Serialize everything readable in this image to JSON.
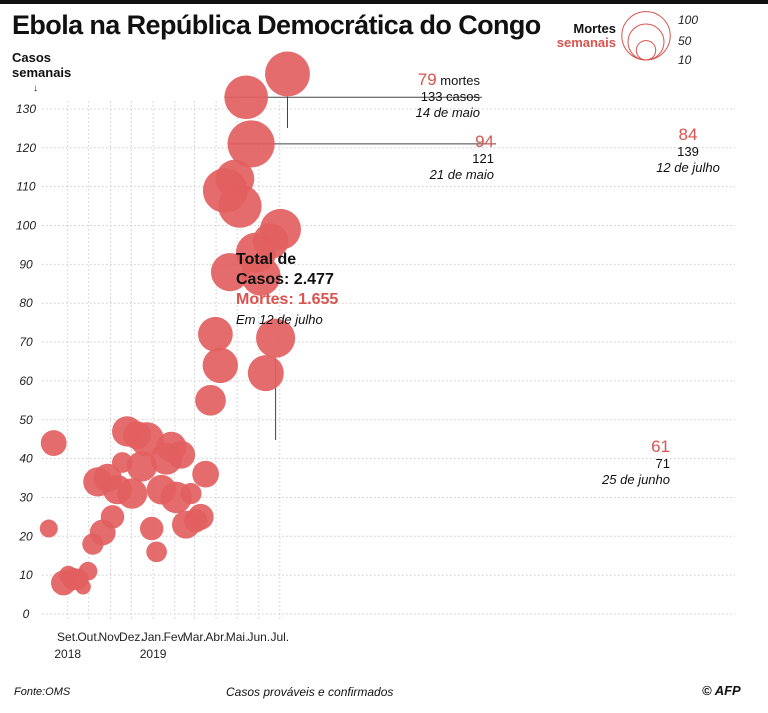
{
  "header": {
    "title": "Ebola na República Democrática do Congo",
    "y_axis_label_1": "Casos",
    "y_axis_label_2": "semanais",
    "legend_title_1": "Mortes",
    "legend_title_2": "semanais",
    "legend_sizes": [
      "100",
      "50",
      "10"
    ]
  },
  "totals": {
    "line1": "Total de",
    "line2": "Casos: 2.477",
    "line3": "Mortes: 1.655",
    "line4": "Em 12 de julho"
  },
  "annotations": {
    "a1_deaths": "79",
    "a1_deaths_word": " mortes",
    "a1_cases": "133 casos",
    "a1_date": "14 de maio",
    "a2_deaths": "94",
    "a2_cases": "121",
    "a2_date": "21 de maio",
    "a3_deaths": "84",
    "a3_cases": "139",
    "a3_date": "12 de julho",
    "a4_deaths": "61",
    "a4_cases": "71",
    "a4_date": "25 de junho"
  },
  "footer": {
    "source": "Fonte:OMS",
    "note": "Casos prováveis e confirmados",
    "copyright": "© AFP"
  },
  "colors": {
    "bubble": "#e36060",
    "accent_text": "#d9534f",
    "grid": "#cccccc"
  },
  "chart_data": {
    "type": "scatter",
    "title": "Ebola na República Democrática do Congo",
    "xlabel": "",
    "ylabel": "Casos semanais",
    "ylim": [
      0,
      135
    ],
    "yticks": [
      0,
      10,
      20,
      30,
      40,
      50,
      60,
      70,
      80,
      90,
      100,
      110,
      120,
      130
    ],
    "grid": true,
    "legend": "top-right",
    "size_legend": [
      100,
      50,
      10
    ],
    "x_ticks": [
      {
        "label": "Set.",
        "sub": "2018",
        "date": "2018-09-01"
      },
      {
        "label": "Out.",
        "sub": "",
        "date": "2018-10-01"
      },
      {
        "label": "Nov.",
        "sub": "",
        "date": "2018-11-01"
      },
      {
        "label": "Dez.",
        "sub": "",
        "date": "2018-12-01"
      },
      {
        "label": "Jan.",
        "sub": "2019",
        "date": "2019-01-01"
      },
      {
        "label": "Fev.",
        "sub": "",
        "date": "2019-02-01"
      },
      {
        "label": "Mar.",
        "sub": "",
        "date": "2019-03-01"
      },
      {
        "label": "Abr.",
        "sub": "",
        "date": "2019-04-01"
      },
      {
        "label": "Mai.",
        "sub": "",
        "date": "2019-05-01"
      },
      {
        "label": "Jun.",
        "sub": "",
        "date": "2019-06-01"
      },
      {
        "label": "Jul.",
        "sub": "",
        "date": "2019-07-01"
      }
    ],
    "series": [
      {
        "points": [
          {
            "x": "2018-08-05",
            "y": 22,
            "deaths": 8
          },
          {
            "x": "2018-08-12",
            "y": 44,
            "deaths": 22
          },
          {
            "x": "2018-08-26",
            "y": 8,
            "deaths": 20
          },
          {
            "x": "2018-09-02",
            "y": 10,
            "deaths": 9
          },
          {
            "x": "2018-09-09",
            "y": 9,
            "deaths": 15
          },
          {
            "x": "2018-09-16",
            "y": 9,
            "deaths": 12
          },
          {
            "x": "2018-09-23",
            "y": 7,
            "deaths": 5
          },
          {
            "x": "2018-09-30",
            "y": 11,
            "deaths": 9
          },
          {
            "x": "2018-10-07",
            "y": 18,
            "deaths": 13
          },
          {
            "x": "2018-10-14",
            "y": 34,
            "deaths": 30
          },
          {
            "x": "2018-10-21",
            "y": 21,
            "deaths": 22
          },
          {
            "x": "2018-10-28",
            "y": 35,
            "deaths": 28
          },
          {
            "x": "2018-11-04",
            "y": 25,
            "deaths": 17
          },
          {
            "x": "2018-11-11",
            "y": 32,
            "deaths": 30
          },
          {
            "x": "2018-11-18",
            "y": 39,
            "deaths": 12
          },
          {
            "x": "2018-11-25",
            "y": 47,
            "deaths": 33
          },
          {
            "x": "2018-12-02",
            "y": 31,
            "deaths": 33
          },
          {
            "x": "2018-12-09",
            "y": 46,
            "deaths": 27
          },
          {
            "x": "2018-12-16",
            "y": 38,
            "deaths": 33
          },
          {
            "x": "2018-12-23",
            "y": 45,
            "deaths": 44
          },
          {
            "x": "2018-12-30",
            "y": 22,
            "deaths": 17
          },
          {
            "x": "2019-01-06",
            "y": 16,
            "deaths": 12
          },
          {
            "x": "2019-01-13",
            "y": 32,
            "deaths": 31
          },
          {
            "x": "2019-01-20",
            "y": 40,
            "deaths": 38
          },
          {
            "x": "2019-01-27",
            "y": 43,
            "deaths": 33
          },
          {
            "x": "2019-02-03",
            "y": 30,
            "deaths": 36
          },
          {
            "x": "2019-02-10",
            "y": 41,
            "deaths": 27
          },
          {
            "x": "2019-02-17",
            "y": 23,
            "deaths": 27
          },
          {
            "x": "2019-02-24",
            "y": 31,
            "deaths": 13
          },
          {
            "x": "2019-03-03",
            "y": 24,
            "deaths": 17
          },
          {
            "x": "2019-03-10",
            "y": 25,
            "deaths": 22
          },
          {
            "x": "2019-03-17",
            "y": 36,
            "deaths": 24
          },
          {
            "x": "2019-03-24",
            "y": 55,
            "deaths": 34
          },
          {
            "x": "2019-03-31",
            "y": 72,
            "deaths": 46
          },
          {
            "x": "2019-04-07",
            "y": 64,
            "deaths": 48
          },
          {
            "x": "2019-04-14",
            "y": 109,
            "deaths": 83
          },
          {
            "x": "2019-04-21",
            "y": 88,
            "deaths": 58
          },
          {
            "x": "2019-04-28",
            "y": 112,
            "deaths": 59
          },
          {
            "x": "2019-05-05",
            "y": 105,
            "deaths": 78
          },
          {
            "x": "2019-05-14",
            "y": 133,
            "deaths": 79
          },
          {
            "x": "2019-05-21",
            "y": 121,
            "deaths": 94
          },
          {
            "x": "2019-05-28",
            "y": 93,
            "deaths": 65
          },
          {
            "x": "2019-06-04",
            "y": 87,
            "deaths": 62
          },
          {
            "x": "2019-06-11",
            "y": 62,
            "deaths": 50
          },
          {
            "x": "2019-06-18",
            "y": 96,
            "deaths": 49
          },
          {
            "x": "2019-06-25",
            "y": 71,
            "deaths": 61
          },
          {
            "x": "2019-07-02",
            "y": 99,
            "deaths": 68
          },
          {
            "x": "2019-07-12",
            "y": 139,
            "deaths": 84
          }
        ]
      }
    ]
  }
}
